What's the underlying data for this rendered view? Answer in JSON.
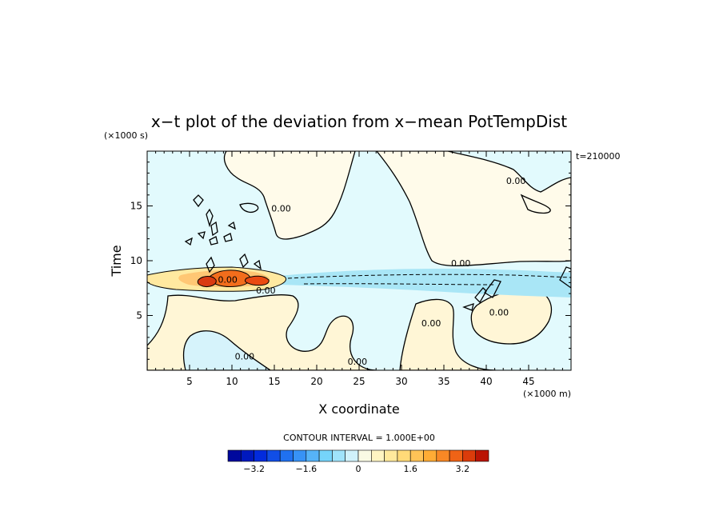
{
  "chart_data": {
    "type": "heatmap",
    "title": "x−t plot of the deviation from x−mean PotTempDist",
    "xlabel": "X coordinate",
    "ylabel": "Time",
    "x_unit": "(×1000 m)",
    "y_unit": "(×1000 s)",
    "time_label": "t=210000",
    "xlim": [
      0,
      50
    ],
    "ylim": [
      0,
      20
    ],
    "x_ticks": [
      5,
      10,
      15,
      20,
      25,
      30,
      35,
      40,
      45
    ],
    "y_ticks": [
      5,
      10,
      15
    ],
    "contour_interval_text": "CONTOUR INTERVAL = 1.000E+00",
    "contour_labels": [
      {
        "x": 15.8,
        "y": 14.5,
        "text": "0.00"
      },
      {
        "x": 14.0,
        "y": 7.0,
        "text": "0.00"
      },
      {
        "x": 11.5,
        "y": 1.0,
        "text": "0.00"
      },
      {
        "x": 24.8,
        "y": 0.5,
        "text": "0.00"
      },
      {
        "x": 33.5,
        "y": 4.0,
        "text": "0.00"
      },
      {
        "x": 37.0,
        "y": 9.5,
        "text": "0.00"
      },
      {
        "x": 41.5,
        "y": 5.0,
        "text": "0.00"
      },
      {
        "x": 43.5,
        "y": 17.0,
        "text": "0.00"
      },
      {
        "x": 9.5,
        "y": 8.0,
        "text": "0.00"
      }
    ],
    "colorbar": {
      "min": -4.0,
      "max": 4.0,
      "step": 0.4,
      "tick_values": [
        -3.2,
        -1.6,
        0,
        1.6,
        3.2
      ],
      "tick_labels": [
        "−3.2",
        "−1.6",
        "0",
        "1.6",
        "3.2"
      ]
    }
  }
}
